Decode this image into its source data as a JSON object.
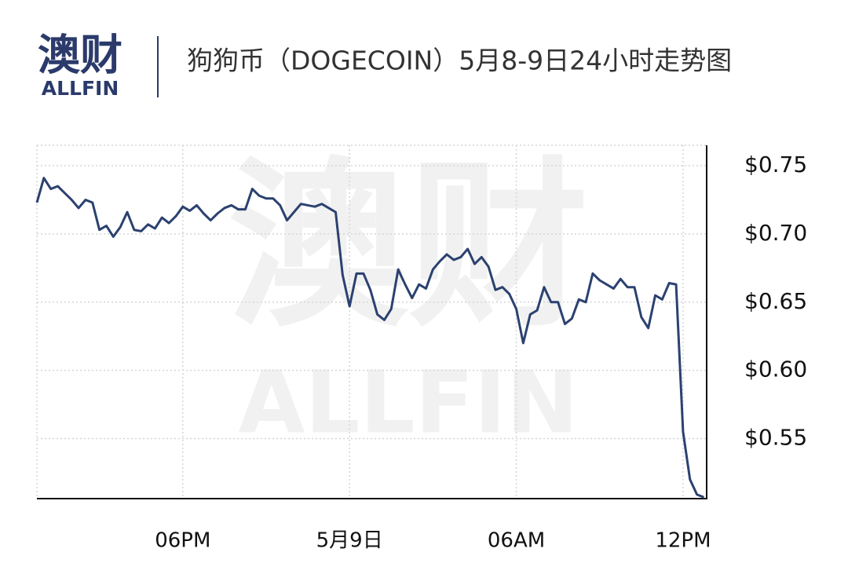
{
  "header": {
    "logo": "澳财",
    "logo_sub": "ALLFIN"
  },
  "watermark": {
    "logo": "澳财",
    "name": "ALLFIN"
  },
  "chart_data": {
    "type": "line",
    "title": "狗狗币（DOGECOIN）5月8-9日24小时走势图",
    "x": [
      12.75,
      13,
      13.25,
      13.5,
      13.75,
      14,
      14.25,
      14.5,
      14.75,
      15,
      15.25,
      15.5,
      15.75,
      16,
      16.25,
      16.5,
      16.75,
      17,
      17.25,
      17.5,
      17.75,
      18,
      18.25,
      18.5,
      18.75,
      19,
      19.25,
      19.5,
      19.75,
      20,
      20.25,
      20.5,
      20.75,
      21,
      21.25,
      21.5,
      21.75,
      22,
      22.25,
      22.5,
      22.75,
      23,
      23.25,
      23.5,
      23.75,
      24,
      24.25,
      24.5,
      24.75,
      25,
      25.25,
      25.5,
      25.75,
      26,
      26.25,
      26.5,
      26.75,
      27,
      27.25,
      27.5,
      27.75,
      28,
      28.25,
      28.5,
      28.75,
      29,
      29.25,
      29.5,
      29.75,
      30,
      30.25,
      30.5,
      30.75,
      31,
      31.25,
      31.5,
      31.75,
      32,
      32.25,
      32.5,
      32.75,
      33,
      33.25,
      33.5,
      33.75,
      34,
      34.25,
      34.5,
      34.75,
      35,
      35.25,
      35.5,
      35.75,
      36,
      36.25,
      36.5,
      36.75
    ],
    "series": [
      {
        "name": "DOGECOIN",
        "color": "#2b4170",
        "values": [
          0.723,
          0.741,
          0.733,
          0.735,
          0.73,
          0.725,
          0.719,
          0.725,
          0.723,
          0.703,
          0.706,
          0.698,
          0.705,
          0.716,
          0.703,
          0.702,
          0.707,
          0.704,
          0.712,
          0.708,
          0.713,
          0.72,
          0.717,
          0.721,
          0.715,
          0.71,
          0.715,
          0.719,
          0.721,
          0.718,
          0.718,
          0.733,
          0.728,
          0.726,
          0.726,
          0.721,
          0.71,
          0.716,
          0.722,
          0.721,
          0.72,
          0.722,
          0.719,
          0.716,
          0.67,
          0.647,
          0.671,
          0.671,
          0.659,
          0.641,
          0.637,
          0.645,
          0.674,
          0.663,
          0.653,
          0.663,
          0.66,
          0.674,
          0.68,
          0.685,
          0.681,
          0.683,
          0.689,
          0.678,
          0.683,
          0.676,
          0.659,
          0.661,
          0.656,
          0.645,
          0.62,
          0.641,
          0.644,
          0.661,
          0.65,
          0.65,
          0.634,
          0.638,
          0.652,
          0.65,
          0.671,
          0.666,
          0.663,
          0.66,
          0.667,
          0.661,
          0.661,
          0.639,
          0.631,
          0.655,
          0.652,
          0.664,
          0.663,
          0.555,
          0.52,
          0.509,
          0.507
        ]
      }
    ],
    "xlim": [
      12.75,
      36.85
    ],
    "xticks": [
      {
        "value": 18,
        "label": "06PM"
      },
      {
        "value": 24,
        "label": "5月9日"
      },
      {
        "value": 30,
        "label": "06AM"
      },
      {
        "value": 36,
        "label": "12PM"
      }
    ],
    "ylim": [
      0.506,
      0.765
    ],
    "yticks": [
      {
        "value": 0.55,
        "label": "$0.55"
      },
      {
        "value": 0.6,
        "label": "$0.60"
      },
      {
        "value": 0.65,
        "label": "$0.65"
      },
      {
        "value": 0.7,
        "label": "$0.70"
      },
      {
        "value": 0.75,
        "label": "$0.75"
      }
    ],
    "grid": true
  }
}
